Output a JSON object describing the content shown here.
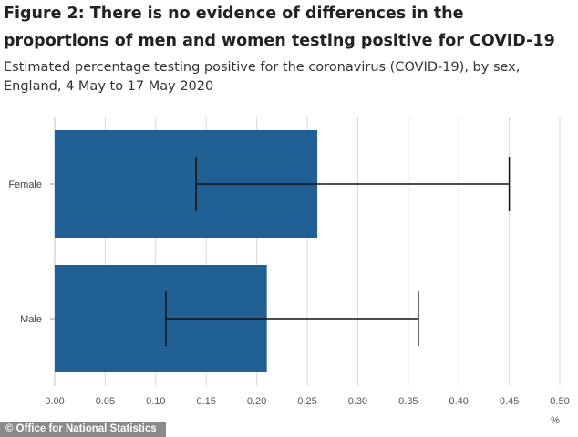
{
  "chart_data": {
    "type": "bar",
    "orientation": "horizontal",
    "title": "Figure 2: There is no evidence of differences in the proportions of men and women testing positive for COVID-19",
    "subtitle": "Estimated percentage testing positive for the coronavirus (COVID-19), by sex, England, 4 May to 17 May 2020",
    "categories": [
      "Female",
      "Male"
    ],
    "values": [
      0.26,
      0.21
    ],
    "error_low": [
      0.14,
      0.11
    ],
    "error_high": [
      0.45,
      0.36
    ],
    "xlim": [
      0,
      0.5
    ],
    "xticks": [
      "0.00",
      "0.05",
      "0.10",
      "0.15",
      "0.20",
      "0.25",
      "0.30",
      "0.35",
      "0.40",
      "0.45",
      "0.50"
    ],
    "xunit": "%",
    "grid": true,
    "bar_color": "#206095"
  },
  "footer": {
    "source": "© Office for National Statistics"
  }
}
